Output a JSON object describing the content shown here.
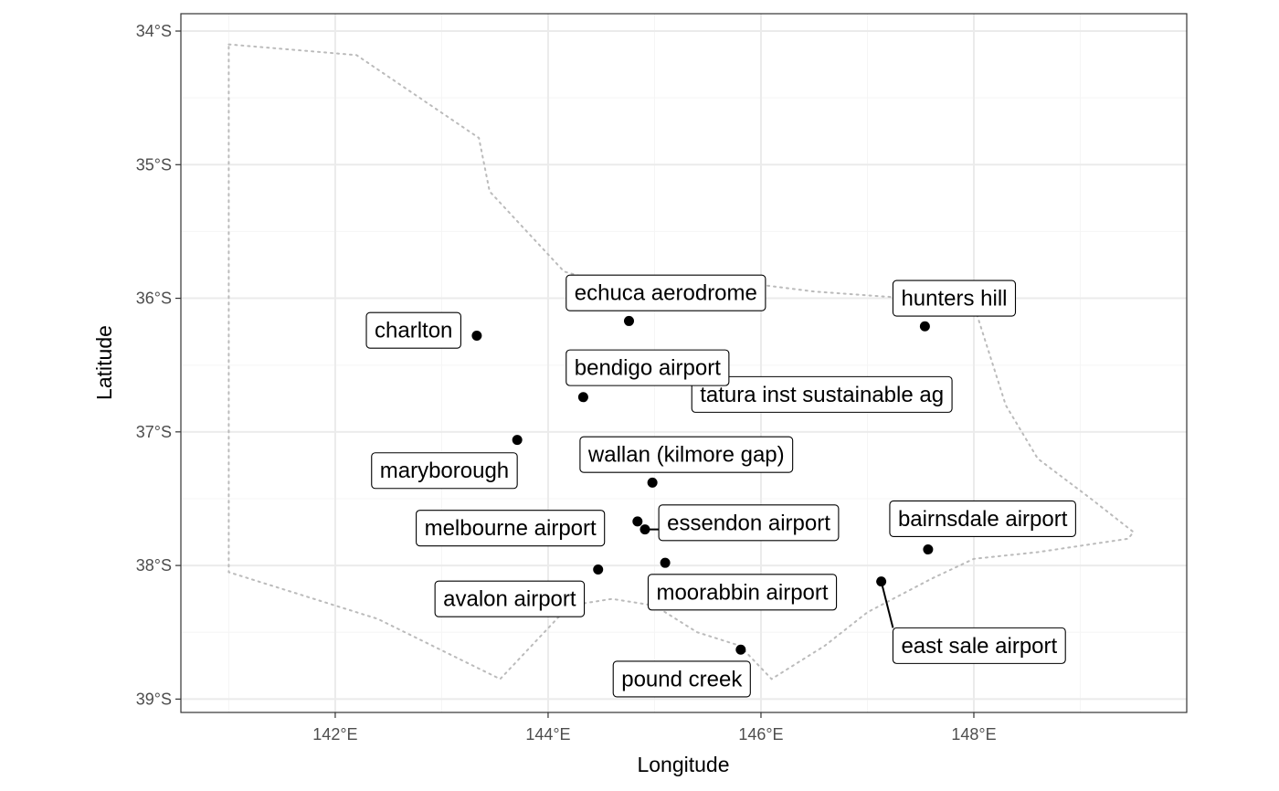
{
  "axes": {
    "xlabel": "Longitude",
    "ylabel": "Latitude",
    "xlim": [
      140.55,
      150.0
    ],
    "ylim": [
      -39.1,
      -33.87
    ],
    "x_ticks": [
      {
        "value": 142,
        "label": "142°E"
      },
      {
        "value": 144,
        "label": "144°E"
      },
      {
        "value": 146,
        "label": "146°E"
      },
      {
        "value": 148,
        "label": "148°E"
      }
    ],
    "y_ticks": [
      {
        "value": -34,
        "label": "34°S"
      },
      {
        "value": -35,
        "label": "35°S"
      },
      {
        "value": -36,
        "label": "36°S"
      },
      {
        "value": -37,
        "label": "37°S"
      },
      {
        "value": -38,
        "label": "38°S"
      },
      {
        "value": -39,
        "label": "39°S"
      }
    ],
    "grid": true
  },
  "chart_data": {
    "type": "scatter",
    "boundary": {
      "style": "dotted",
      "color": "#bbbbbb",
      "points": [
        [
          141.0,
          -34.1
        ],
        [
          142.2,
          -34.18
        ],
        [
          143.35,
          -34.8
        ],
        [
          143.45,
          -35.2
        ],
        [
          144.15,
          -35.8
        ],
        [
          144.6,
          -35.9
        ],
        [
          145.5,
          -35.85
        ],
        [
          146.5,
          -35.95
        ],
        [
          147.4,
          -36.0
        ],
        [
          148.0,
          -36.05
        ],
        [
          148.3,
          -36.8
        ],
        [
          148.6,
          -37.2
        ],
        [
          149.1,
          -37.5
        ],
        [
          149.5,
          -37.75
        ],
        [
          149.45,
          -37.8
        ],
        [
          148.6,
          -37.9
        ],
        [
          148.0,
          -37.95
        ],
        [
          147.6,
          -38.1
        ],
        [
          147.0,
          -38.35
        ],
        [
          146.6,
          -38.6
        ],
        [
          146.1,
          -38.85
        ],
        [
          145.8,
          -38.6
        ],
        [
          145.4,
          -38.5
        ],
        [
          145.0,
          -38.3
        ],
        [
          144.6,
          -38.25
        ],
        [
          144.2,
          -38.3
        ],
        [
          143.55,
          -38.85
        ],
        [
          142.4,
          -38.4
        ],
        [
          141.0,
          -38.05
        ],
        [
          141.0,
          -34.1
        ]
      ]
    },
    "stations": [
      {
        "name": "charlton",
        "lon": 143.33,
        "lat": -36.28,
        "label_lon": 143.18,
        "label_lat": -36.24,
        "anchor": "end"
      },
      {
        "name": "echuca  aerodrome",
        "lon": 144.76,
        "lat": -36.17,
        "label_lon": 144.17,
        "label_lat": -35.96,
        "anchor": "start"
      },
      {
        "name": "hunters hill",
        "lon": 147.54,
        "lat": -36.21,
        "label_lon": 147.24,
        "label_lat": -36.0,
        "anchor": "start"
      },
      {
        "name": "tatura inst sustainable ag",
        "lon": 145.27,
        "lat": -36.44,
        "label_lon": 145.35,
        "label_lat": -36.72,
        "anchor": "start",
        "leader": true
      },
      {
        "name": "bendigo airport",
        "lon": 144.33,
        "lat": -36.74,
        "label_lon": 144.17,
        "label_lat": -36.52,
        "anchor": "start"
      },
      {
        "name": "maryborough",
        "lon": 143.71,
        "lat": -37.06,
        "label_lon": 143.71,
        "label_lat": -37.29,
        "anchor": "end"
      },
      {
        "name": "wallan (kilmore gap)",
        "lon": 144.98,
        "lat": -37.38,
        "label_lon": 144.3,
        "label_lat": -37.17,
        "anchor": "start"
      },
      {
        "name": "essendon airport",
        "lon": 144.91,
        "lat": -37.73,
        "label_lon": 145.04,
        "label_lat": -37.68,
        "anchor": "start",
        "leader": true
      },
      {
        "name": "melbourne airport",
        "lon": 144.84,
        "lat": -37.67,
        "label_lon": 144.53,
        "label_lat": -37.72,
        "anchor": "end"
      },
      {
        "name": "bairnsdale airport",
        "lon": 147.57,
        "lat": -37.88,
        "label_lon": 147.21,
        "label_lat": -37.65,
        "anchor": "start"
      },
      {
        "name": "moorabbin airport",
        "lon": 145.1,
        "lat": -37.98,
        "label_lon": 144.94,
        "label_lat": -38.2,
        "anchor": "start"
      },
      {
        "name": "avalon airport",
        "lon": 144.47,
        "lat": -38.03,
        "label_lon": 144.34,
        "label_lat": -38.25,
        "anchor": "end"
      },
      {
        "name": "east sale airport",
        "lon": 147.13,
        "lat": -38.12,
        "label_lon": 147.24,
        "label_lat": -38.6,
        "anchor": "start",
        "leader": true
      },
      {
        "name": "pound creek",
        "lon": 145.81,
        "lat": -38.63,
        "label_lon": 145.9,
        "label_lat": -38.85,
        "anchor": "end"
      }
    ]
  }
}
